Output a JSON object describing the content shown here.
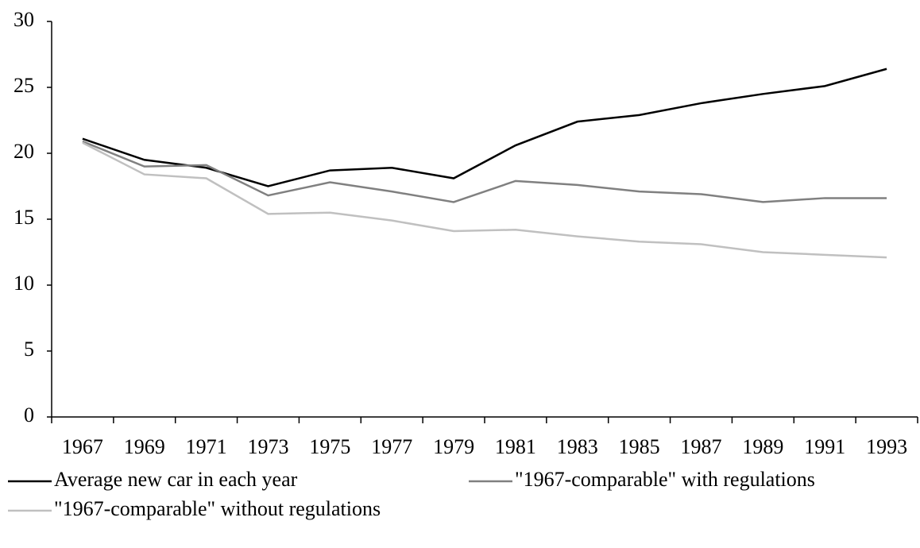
{
  "chart_data": {
    "type": "line",
    "categories": [
      "1967",
      "1969",
      "1971",
      "1973",
      "1975",
      "1977",
      "1979",
      "1981",
      "1983",
      "1985",
      "1987",
      "1989",
      "1991",
      "1993"
    ],
    "series": [
      {
        "name": "Average new car in each year",
        "color": "#000000",
        "values": [
          21.1,
          19.5,
          18.9,
          17.5,
          18.7,
          18.9,
          18.1,
          20.6,
          22.4,
          22.9,
          23.8,
          24.5,
          25.1,
          26.4
        ]
      },
      {
        "name": "\"1967-comparable\" with regulations",
        "color": "#808080",
        "values": [
          20.9,
          19.0,
          19.1,
          16.8,
          17.8,
          17.1,
          16.3,
          17.9,
          17.6,
          17.1,
          16.9,
          16.3,
          16.6,
          16.6
        ]
      },
      {
        "name": "\"1967-comparable\" without regulations",
        "color": "#c0c0c0",
        "values": [
          20.8,
          18.4,
          18.1,
          15.4,
          15.5,
          14.9,
          14.1,
          14.2,
          13.7,
          13.3,
          13.1,
          12.5,
          12.3,
          12.1
        ]
      }
    ],
    "ylim": [
      0,
      30
    ],
    "yticks": [
      0,
      5,
      10,
      15,
      20,
      25,
      30
    ],
    "grid": false
  }
}
